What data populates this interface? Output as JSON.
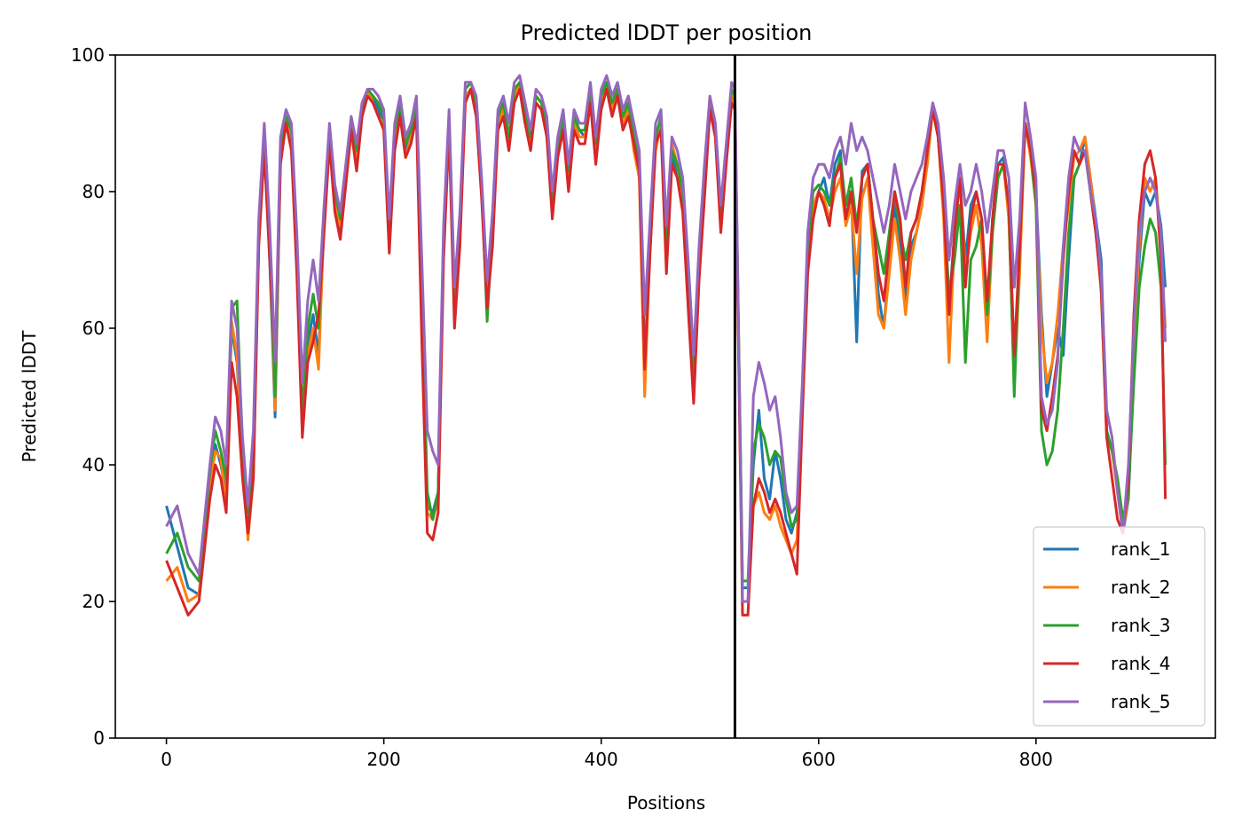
{
  "chart_data": {
    "type": "line",
    "title": "Predicted lDDT per position",
    "xlabel": "Positions",
    "ylabel": "Predicted lDDT",
    "xlim": [
      -47,
      965
    ],
    "ylim": [
      0,
      100
    ],
    "xticks": [
      0,
      200,
      400,
      600,
      800
    ],
    "yticks": [
      0,
      20,
      40,
      60,
      80,
      100
    ],
    "grid": false,
    "legend_position": "lower right",
    "chain_break": 523,
    "chain_break_color": "#000000",
    "colors": {
      "rank_1": "#1f77b4",
      "rank_2": "#ff7f0e",
      "rank_3": "#2ca02c",
      "rank_4": "#d62728",
      "rank_5": "#9467bd"
    },
    "x": [
      0,
      10,
      20,
      30,
      40,
      45,
      50,
      55,
      60,
      65,
      70,
      75,
      80,
      85,
      90,
      95,
      100,
      105,
      110,
      115,
      120,
      125,
      130,
      135,
      140,
      145,
      150,
      155,
      160,
      165,
      170,
      175,
      180,
      185,
      190,
      195,
      200,
      205,
      210,
      215,
      220,
      225,
      230,
      235,
      240,
      245,
      250,
      255,
      260,
      265,
      270,
      275,
      280,
      285,
      290,
      295,
      300,
      305,
      310,
      315,
      320,
      325,
      330,
      335,
      340,
      345,
      350,
      355,
      360,
      365,
      370,
      375,
      380,
      385,
      390,
      395,
      400,
      405,
      410,
      415,
      420,
      425,
      430,
      435,
      440,
      445,
      450,
      455,
      460,
      465,
      470,
      475,
      480,
      485,
      490,
      495,
      500,
      505,
      510,
      515,
      520,
      523,
      530,
      535,
      540,
      545,
      550,
      555,
      560,
      565,
      570,
      575,
      580,
      585,
      590,
      595,
      600,
      605,
      610,
      615,
      620,
      625,
      630,
      635,
      640,
      645,
      650,
      655,
      660,
      665,
      670,
      675,
      680,
      685,
      690,
      695,
      700,
      705,
      710,
      715,
      720,
      725,
      730,
      735,
      740,
      745,
      750,
      755,
      760,
      765,
      770,
      775,
      780,
      785,
      790,
      795,
      800,
      805,
      810,
      815,
      820,
      825,
      830,
      835,
      840,
      845,
      850,
      855,
      860,
      865,
      870,
      875,
      880,
      885,
      890,
      895,
      900,
      905,
      910,
      915,
      919
    ],
    "series": [
      {
        "name": "rank_1",
        "values": [
          34,
          28,
          22,
          21,
          38,
          43,
          40,
          36,
          60,
          55,
          40,
          30,
          40,
          74,
          87,
          70,
          47,
          85,
          90,
          88,
          70,
          45,
          58,
          62,
          56,
          75,
          88,
          78,
          74,
          82,
          90,
          84,
          91,
          94,
          94,
          92,
          90,
          72,
          88,
          92,
          86,
          88,
          93,
          62,
          34,
          33,
          36,
          73,
          90,
          62,
          75,
          94,
          95,
          92,
          80,
          64,
          74,
          90,
          92,
          88,
          94,
          95,
          90,
          88,
          93,
          92,
          89,
          78,
          86,
          90,
          82,
          90,
          89,
          88,
          94,
          86,
          93,
          95,
          93,
          94,
          90,
          92,
          88,
          84,
          55,
          72,
          88,
          90,
          70,
          85,
          83,
          78,
          65,
          50,
          68,
          80,
          92,
          88,
          75,
          85,
          94,
          93,
          22,
          22,
          40,
          48,
          38,
          35,
          42,
          38,
          32,
          30,
          33,
          50,
          70,
          77,
          80,
          82,
          78,
          84,
          86,
          76,
          80,
          58,
          83,
          84,
          75,
          65,
          60,
          70,
          78,
          72,
          64,
          72,
          74,
          78,
          86,
          92,
          88,
          77,
          63,
          74,
          82,
          70,
          78,
          80,
          76,
          60,
          76,
          84,
          85,
          76,
          52,
          70,
          90,
          86,
          80,
          62,
          50,
          55,
          60,
          56,
          70,
          82,
          84,
          88,
          82,
          76,
          70,
          45,
          42,
          38,
          30,
          35,
          55,
          70,
          80,
          78,
          80,
          75,
          66
        ]
      },
      {
        "name": "rank_2",
        "values": [
          23,
          25,
          20,
          21,
          37,
          42,
          41,
          34,
          61,
          56,
          40,
          29,
          38,
          73,
          88,
          72,
          48,
          86,
          91,
          87,
          71,
          45,
          56,
          60,
          54,
          76,
          89,
          79,
          75,
          81,
          89,
          85,
          92,
          95,
          93,
          91,
          90,
          73,
          87,
          91,
          85,
          88,
          92,
          63,
          33,
          32,
          35,
          72,
          91,
          63,
          74,
          94,
          95,
          93,
          80,
          65,
          73,
          90,
          92,
          87,
          94,
          96,
          91,
          87,
          94,
          93,
          88,
          78,
          87,
          91,
          81,
          90,
          88,
          88,
          94,
          85,
          93,
          96,
          92,
          95,
          90,
          92,
          86,
          82,
          50,
          72,
          86,
          90,
          70,
          87,
          84,
          78,
          64,
          50,
          68,
          80,
          93,
          89,
          75,
          85,
          94,
          93,
          20,
          20,
          34,
          36,
          33,
          32,
          34,
          31,
          29,
          27,
          29,
          48,
          70,
          78,
          80,
          79,
          76,
          80,
          82,
          75,
          78,
          68,
          79,
          82,
          72,
          62,
          60,
          68,
          76,
          70,
          62,
          70,
          74,
          78,
          84,
          92,
          88,
          76,
          55,
          73,
          82,
          68,
          74,
          78,
          72,
          58,
          74,
          82,
          84,
          76,
          52,
          68,
          90,
          85,
          78,
          60,
          52,
          55,
          62,
          72,
          78,
          85,
          86,
          88,
          82,
          75,
          65,
          44,
          42,
          36,
          30,
          36,
          58,
          72,
          82,
          80,
          82,
          72,
          60
        ]
      },
      {
        "name": "rank_3",
        "values": [
          27,
          30,
          25,
          23,
          39,
          45,
          42,
          38,
          63,
          64,
          42,
          33,
          42,
          75,
          89,
          73,
          50,
          87,
          91,
          89,
          73,
          47,
          60,
          65,
          60,
          77,
          89,
          80,
          76,
          83,
          90,
          86,
          92,
          95,
          94,
          93,
          91,
          74,
          89,
          93,
          87,
          89,
          93,
          64,
          36,
          32,
          36,
          74,
          91,
          64,
          76,
          95,
          96,
          93,
          81,
          61,
          75,
          91,
          93,
          88,
          95,
          96,
          92,
          88,
          94,
          93,
          90,
          79,
          87,
          91,
          83,
          91,
          89,
          89,
          95,
          87,
          94,
          96,
          93,
          95,
          91,
          93,
          88,
          84,
          55,
          73,
          88,
          91,
          72,
          86,
          84,
          80,
          66,
          52,
          70,
          82,
          93,
          89,
          76,
          86,
          95,
          94,
          23,
          23,
          42,
          46,
          44,
          40,
          42,
          41,
          35,
          31,
          32,
          49,
          72,
          80,
          81,
          80,
          78,
          82,
          85,
          78,
          82,
          75,
          82,
          84,
          76,
          72,
          68,
          74,
          80,
          74,
          70,
          74,
          76,
          80,
          86,
          92,
          88,
          78,
          65,
          70,
          78,
          55,
          70,
          72,
          76,
          62,
          74,
          82,
          84,
          78,
          50,
          72,
          90,
          86,
          78,
          45,
          40,
          42,
          48,
          60,
          74,
          82,
          84,
          86,
          80,
          74,
          66,
          45,
          42,
          38,
          32,
          36,
          52,
          66,
          72,
          76,
          74,
          66,
          40
        ]
      },
      {
        "name": "rank_4",
        "values": [
          26,
          22,
          18,
          20,
          35,
          40,
          38,
          33,
          55,
          50,
          38,
          30,
          38,
          72,
          86,
          70,
          55,
          84,
          90,
          86,
          68,
          44,
          55,
          58,
          62,
          74,
          87,
          77,
          73,
          81,
          89,
          83,
          91,
          94,
          93,
          91,
          89,
          71,
          86,
          91,
          85,
          87,
          91,
          58,
          30,
          29,
          33,
          70,
          89,
          60,
          72,
          93,
          95,
          91,
          79,
          63,
          72,
          89,
          91,
          86,
          93,
          95,
          90,
          86,
          93,
          92,
          88,
          76,
          85,
          89,
          80,
          89,
          87,
          87,
          93,
          84,
          92,
          95,
          91,
          94,
          89,
          91,
          87,
          83,
          54,
          71,
          87,
          89,
          68,
          84,
          82,
          77,
          63,
          49,
          67,
          79,
          92,
          88,
          74,
          84,
          93,
          92,
          18,
          18,
          34,
          38,
          36,
          33,
          35,
          33,
          30,
          27,
          24,
          47,
          68,
          76,
          80,
          78,
          75,
          82,
          84,
          76,
          80,
          74,
          82,
          84,
          76,
          68,
          64,
          72,
          80,
          76,
          66,
          74,
          76,
          80,
          86,
          92,
          88,
          78,
          62,
          74,
          82,
          66,
          76,
          80,
          76,
          64,
          76,
          84,
          84,
          78,
          56,
          72,
          90,
          86,
          80,
          48,
          45,
          50,
          56,
          70,
          80,
          86,
          84,
          86,
          80,
          74,
          66,
          44,
          38,
          32,
          30,
          38,
          62,
          76,
          84,
          86,
          82,
          70,
          35
        ]
      },
      {
        "name": "rank_5",
        "values": [
          31,
          34,
          27,
          24,
          40,
          47,
          45,
          40,
          64,
          60,
          44,
          34,
          45,
          76,
          90,
          75,
          55,
          88,
          92,
          90,
          74,
          52,
          64,
          70,
          64,
          78,
          90,
          81,
          77,
          84,
          91,
          87,
          93,
          95,
          95,
          94,
          92,
          76,
          90,
          94,
          88,
          90,
          94,
          70,
          45,
          42,
          40,
          75,
          92,
          66,
          77,
          96,
          96,
          94,
          82,
          67,
          77,
          92,
          94,
          90,
          96,
          97,
          93,
          89,
          95,
          94,
          91,
          80,
          88,
          92,
          84,
          92,
          90,
          90,
          96,
          88,
          95,
          97,
          94,
          96,
          92,
          94,
          90,
          86,
          62,
          76,
          90,
          92,
          75,
          88,
          86,
          82,
          70,
          56,
          72,
          84,
          94,
          90,
          78,
          87,
          96,
          95,
          20,
          20,
          50,
          55,
          52,
          48,
          50,
          44,
          36,
          33,
          34,
          52,
          74,
          82,
          84,
          84,
          82,
          86,
          88,
          84,
          90,
          86,
          88,
          86,
          82,
          78,
          74,
          78,
          84,
          80,
          76,
          80,
          82,
          84,
          88,
          93,
          90,
          82,
          70,
          78,
          84,
          78,
          80,
          84,
          80,
          74,
          80,
          86,
          86,
          82,
          66,
          76,
          93,
          88,
          82,
          50,
          46,
          48,
          55,
          72,
          82,
          88,
          86,
          86,
          80,
          76,
          68,
          48,
          44,
          36,
          30,
          40,
          60,
          74,
          80,
          82,
          80,
          74,
          58
        ]
      }
    ]
  }
}
